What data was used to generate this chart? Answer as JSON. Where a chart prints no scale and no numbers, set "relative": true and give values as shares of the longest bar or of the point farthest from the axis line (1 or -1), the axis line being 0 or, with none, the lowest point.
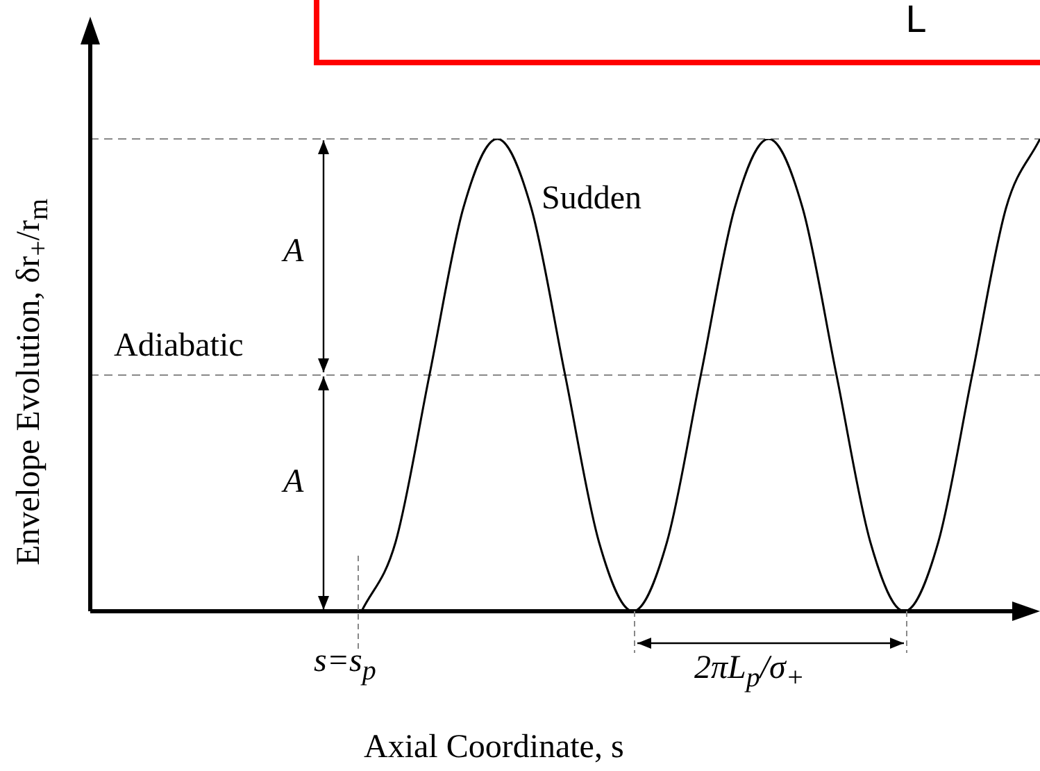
{
  "chart_data": {
    "type": "line",
    "relative": true,
    "xlabel": "Axial Coordinate, s",
    "ylabel": "Envelope Evolution, δr$_{+}$/r$_{m}$",
    "categories": [
      null,
      null,
      null,
      null,
      null,
      null,
      null,
      null,
      null,
      null,
      null,
      null,
      null,
      null,
      null,
      null,
      null,
      null,
      null,
      null,
      null,
      null,
      null,
      null,
      null,
      null,
      null,
      null,
      null
    ],
    "series": [
      {
        "color": "#000000",
        "values": [
          null,
          null,
          null,
          null,
          null,
          null,
          null,
          null,
          0,
          0.146,
          0.5,
          0.854,
          1,
          0.854,
          0.5,
          0.146,
          0,
          0.146,
          0.5,
          0.854,
          1,
          0.854,
          0.5,
          0.146,
          0,
          0.146,
          0.5,
          0.854,
          1
        ]
      }
    ],
    "ref_lines": [
      {
        "axis": "y",
        "value": 1,
        "color": "#888888",
        "line_style": "dashed"
      },
      {
        "axis": "y",
        "value": 0.5,
        "color": "#888888",
        "line_style": "dashed"
      }
    ],
    "annotations": [
      "Sudden",
      "Adiabatic",
      "A",
      "A",
      "s=s$_{p}$",
      "2πL$_{p}$/σ$_{+}$",
      "L"
    ],
    "legend": false,
    "marker": "none",
    "line_style": "solid"
  }
}
